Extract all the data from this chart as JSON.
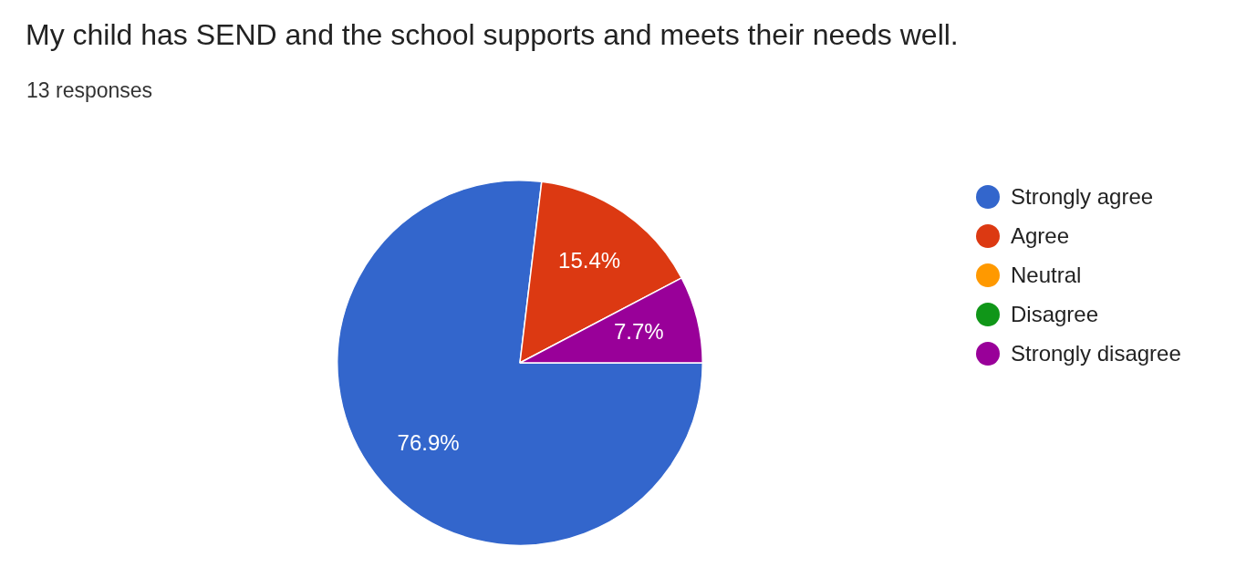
{
  "chart_data": {
    "type": "pie",
    "title": "My child has SEND and the school supports and meets their needs well.",
    "subtitle": "13 responses",
    "categories": [
      "Strongly agree",
      "Agree",
      "Neutral",
      "Disagree",
      "Strongly disagree"
    ],
    "values": [
      76.9,
      15.4,
      0,
      0,
      7.7
    ],
    "colors": [
      "#3366cc",
      "#dc3912",
      "#ff9900",
      "#109618",
      "#990099"
    ],
    "value_labels": [
      "76.9%",
      "15.4%",
      null,
      null,
      "7.7%"
    ],
    "legend": "right"
  }
}
